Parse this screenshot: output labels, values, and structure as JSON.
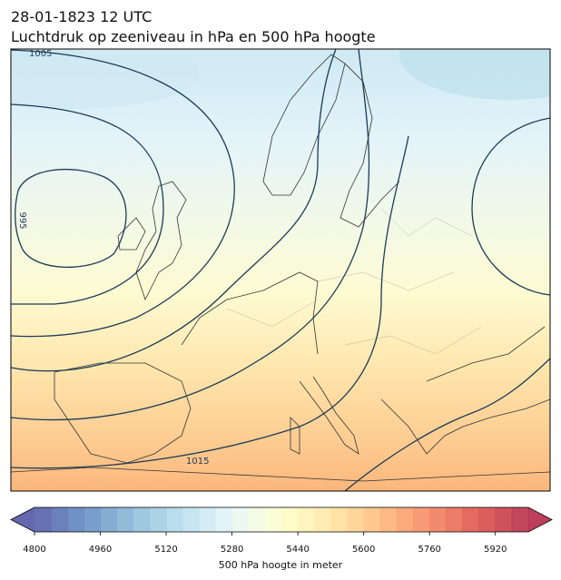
{
  "header": {
    "date": "28-01-1823 12 UTC",
    "title": "Luchtdruk op zeeniveau in hPa en 500 hPa hoogte"
  },
  "map": {
    "contour_labels": [
      "1005",
      "995",
      "1015"
    ]
  },
  "colorbar": {
    "colormap": "RdYlBu_r",
    "lim": [
      4800,
      6000
    ],
    "bin_width": 40,
    "ticks": [
      4800,
      4960,
      5120,
      5280,
      5440,
      5600,
      5760,
      5920
    ],
    "label": "500 hPa hoogte in meter"
  }
}
